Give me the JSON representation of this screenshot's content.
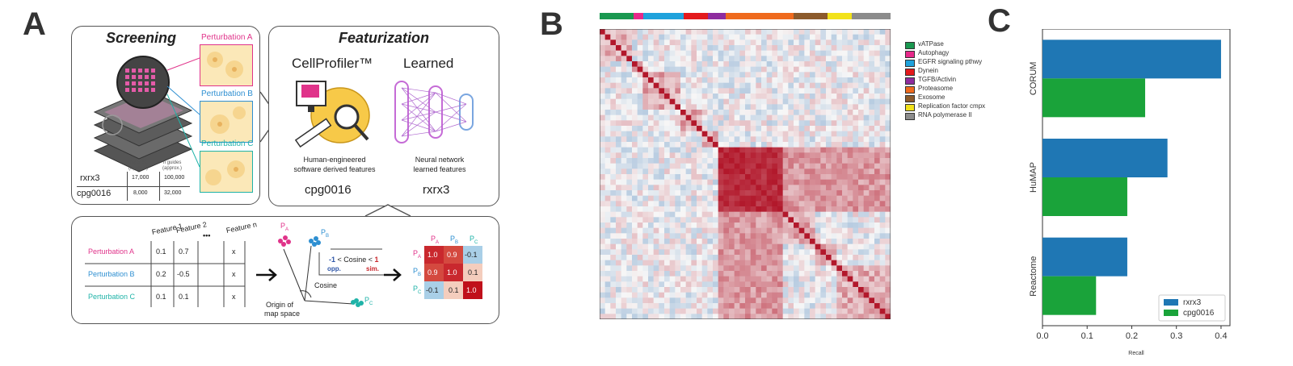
{
  "panels": {
    "a": "A",
    "b": "B",
    "c": "C"
  },
  "screening": {
    "title": "Screening",
    "perturbations": [
      {
        "label": "Perturbation A",
        "color": "#e0338a"
      },
      {
        "label": "Perturbation B",
        "color": "#2e8fd1"
      },
      {
        "label": "Perturbation C",
        "color": "#1fb3a8"
      }
    ],
    "table": {
      "headers": [
        "n genes\n(approx.)",
        "n guides\n(approx.)"
      ],
      "header_genes": "n genes",
      "header_guides": "n guides",
      "approx": "(approx.)",
      "rows": [
        {
          "name": "rxrx3",
          "genes": "17,000",
          "guides": "100,000"
        },
        {
          "name": "cpg0016",
          "genes": "8,000",
          "guides": "32,000"
        }
      ]
    }
  },
  "featurization": {
    "title": "Featurization",
    "left_title": "CellProfiler™",
    "left_desc_1": "Human-engineered",
    "left_desc_2": "software derived features",
    "left_dataset": "cpg0016",
    "right_title": "Learned",
    "right_desc_1": "Neural network",
    "right_desc_2": "learned features",
    "right_dataset": "rxrx3"
  },
  "bottom": {
    "features": [
      "Feature 1",
      "Feature 2",
      "•••",
      "Feature n"
    ],
    "rows": [
      {
        "label": "Perturbation A",
        "values": [
          "0.1",
          "0.7",
          "",
          "x"
        ],
        "color": "#e0338a"
      },
      {
        "label": "Perturbation B",
        "values": [
          "0.2",
          "-0.5",
          "",
          "x"
        ],
        "color": "#2e8fd1"
      },
      {
        "label": "Perturbation C",
        "values": [
          "0.1",
          "0.1",
          "",
          "x"
        ],
        "color": "#1fb3a8"
      }
    ],
    "pa": "P",
    "pa_sub": "A",
    "pb": "P",
    "pb_sub": "B",
    "pc": "P",
    "pc_sub": "C",
    "cosine_label": "Cosine",
    "cosine_range_lo": "-1",
    "cosine_range_mid": " < Cosine < ",
    "cosine_range_hi": "1",
    "opp": "opp.",
    "sim": "sim.",
    "origin_1": "Origin of",
    "origin_2": "map space",
    "matrix_heads": [
      "P",
      "P",
      "P"
    ],
    "matrix_subs": [
      "A",
      "B",
      "C"
    ],
    "matrix": [
      [
        "1.0",
        "0.9",
        "-0.1"
      ],
      [
        "0.9",
        "1.0",
        "0.1"
      ],
      [
        "-0.1",
        "0.1",
        "1.0"
      ]
    ]
  },
  "heatmap_legend": [
    {
      "label": "vATPase",
      "color": "#1a9850"
    },
    {
      "label": "Autophagy",
      "color": "#e7298a"
    },
    {
      "label": "EGFR signaling pthwy",
      "color": "#1fa2dc"
    },
    {
      "label": "Dynein",
      "color": "#e31a1c"
    },
    {
      "label": "TGFB/Activin",
      "color": "#8e2c9e"
    },
    {
      "label": "Proteasome",
      "color": "#ef6a1d"
    },
    {
      "label": "Exosome",
      "color": "#8c5a2b"
    },
    {
      "label": "Replication factor cmpx",
      "color": "#f2e21a"
    },
    {
      "label": "RNA polymerase II",
      "color": "#8c8c8c"
    }
  ],
  "chart_data": {
    "type": "bar",
    "orientation": "horizontal",
    "categories": [
      "CORUM",
      "HuMAP",
      "Reactome"
    ],
    "series": [
      {
        "name": "rxrx3",
        "color": "#1f77b4",
        "values": [
          0.4,
          0.28,
          0.19
        ]
      },
      {
        "name": "cpg0016",
        "color": "#1aa33a",
        "values": [
          0.23,
          0.19,
          0.12
        ]
      }
    ],
    "xlabel": "Recall",
    "xlim": [
      0,
      0.42
    ],
    "xticks": [
      "0.0",
      "0.1",
      "0.2",
      "0.3",
      "0.4"
    ],
    "xtick_values": [
      0,
      0.1,
      0.2,
      0.3,
      0.4
    ],
    "legend_position": "lower-right"
  }
}
